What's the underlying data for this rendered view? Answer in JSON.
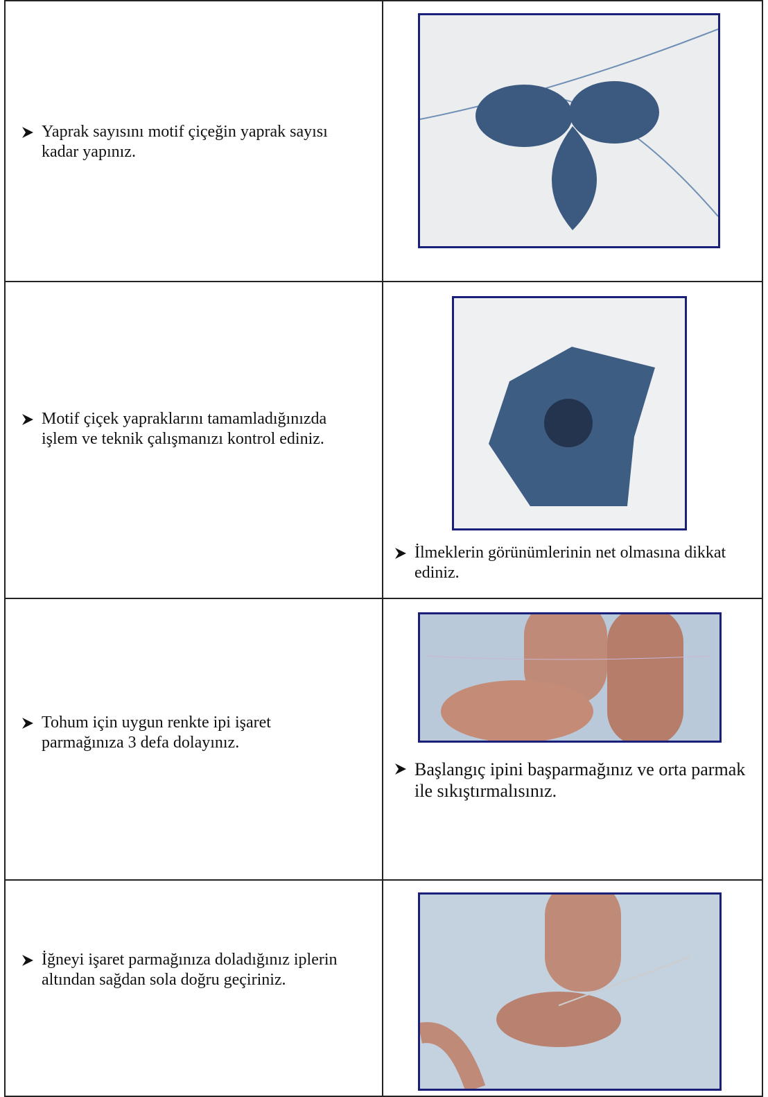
{
  "table": {
    "rows": [
      {
        "text": "Yaprak sayısını motif çiçeğin yaprak sayısı kadar yapınız."
      },
      {
        "text": "Motif çiçek yapraklarını tamamladığınızda işlem ve teknik çalışmanızı kontrol ediniz.",
        "caption": "İlmeklerin görünümlerinin net olmasına dikkat ediniz."
      },
      {
        "text": "Tohum için uygun renkte ipi işaret parmağınıza 3 defa dolayınız.",
        "caption": "Başlangıç ipini başparmağınız ve orta parmak ile sıkıştırmalısınız."
      },
      {
        "text": "İğneyi işaret parmağınıza doladığınız iplerin altından sağdan sola doğru geçiriniz."
      }
    ]
  }
}
